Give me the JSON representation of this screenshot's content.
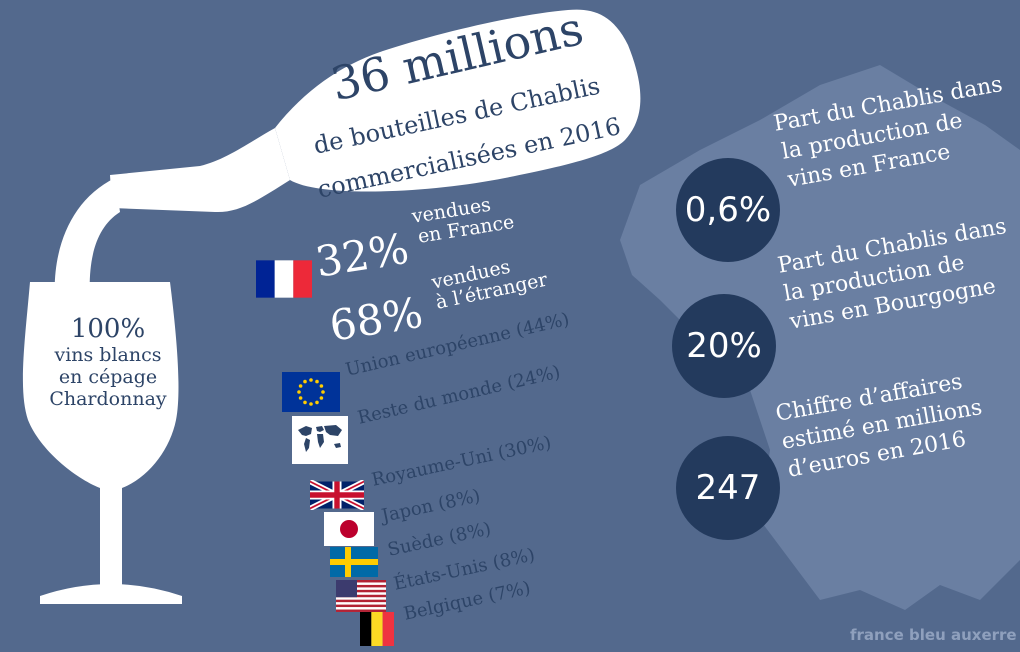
{
  "headline": {
    "big": "36 millions",
    "line1": "de bouteilles de Chablis",
    "line2": "commercialisées en 2016"
  },
  "glass": {
    "pct": "100%",
    "line1": "vins blancs",
    "line2": "en cépage",
    "line3": "Chardonnay"
  },
  "france": {
    "pct": "32%",
    "line1": "vendues",
    "line2": "en France",
    "flag": "france-flag"
  },
  "abroad": {
    "pct": "68%",
    "line1": "vendues",
    "line2": "à l’étranger"
  },
  "regions": [
    {
      "label": "Union européenne (44%)",
      "flag": "eu-flag"
    },
    {
      "label": "Reste du monde (24%)",
      "flag": "world-map-icon"
    }
  ],
  "countries": [
    {
      "label": "Royaume-Uni (30%)",
      "flag": "uk-flag"
    },
    {
      "label": "Japon (8%)",
      "flag": "japan-flag"
    },
    {
      "label": "Suède (8%)",
      "flag": "sweden-flag"
    },
    {
      "label": "États-Unis (8%)",
      "flag": "usa-flag"
    },
    {
      "label": "Belgique (7%)",
      "flag": "belgium-flag"
    }
  ],
  "stats": [
    {
      "value": "0,6%",
      "line1": "Part du Chablis dans",
      "line2": "la production de",
      "line3": "vins en France"
    },
    {
      "value": "20%",
      "line1": "Part du Chablis dans",
      "line2": "la production de",
      "line3": "vins en Bourgogne"
    },
    {
      "value": "247",
      "line1": "Chiffre d’affaires",
      "line2": "estimé en millions",
      "line3": "d’euros en 2016"
    }
  ],
  "source": "france bleu auxerre",
  "colors": {
    "background": "#53698d",
    "dark_text": "#2d4467",
    "circle": "#233a5d",
    "map": "#6a7fa2"
  }
}
